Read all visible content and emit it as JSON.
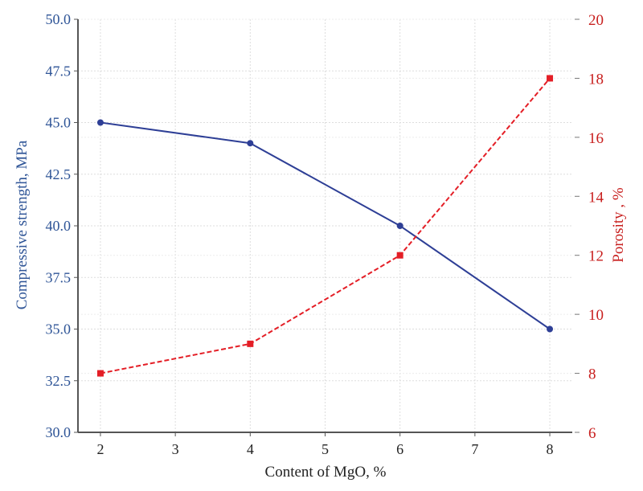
{
  "chart_data": {
    "type": "line",
    "title": "",
    "xlabel": "Content of MgO, %",
    "ylabel": "Compressive strength, MPa",
    "y2label": "Porosity , %",
    "x": [
      2,
      4,
      6,
      8
    ],
    "xticks": [
      2,
      3,
      4,
      5,
      6,
      7,
      8
    ],
    "xlim": [
      1.7,
      8.3
    ],
    "ylim": [
      30,
      50
    ],
    "yticks": [
      "30.0",
      "32.5",
      "35.0",
      "37.5",
      "40.0",
      "42.5",
      "45.0",
      "47.5",
      "50.0"
    ],
    "y2lim": [
      6,
      20
    ],
    "y2ticks": [
      "6",
      "8",
      "10",
      "12",
      "14",
      "16",
      "18",
      "20"
    ],
    "grid": true,
    "series": [
      {
        "name": "Compressive strength",
        "axis": "left",
        "values": [
          45,
          44,
          40,
          35
        ],
        "color": "#2e3f96",
        "style": "solid",
        "marker": "circle"
      },
      {
        "name": "Porosity",
        "axis": "right",
        "values": [
          8,
          9,
          12,
          18
        ],
        "color": "#e41e26",
        "style": "dashed",
        "marker": "square"
      }
    ],
    "colors": {
      "left_axis": "#2f5597",
      "right_axis": "#c8201f",
      "axis_line": "#555555",
      "grid": "#dddddd"
    }
  }
}
